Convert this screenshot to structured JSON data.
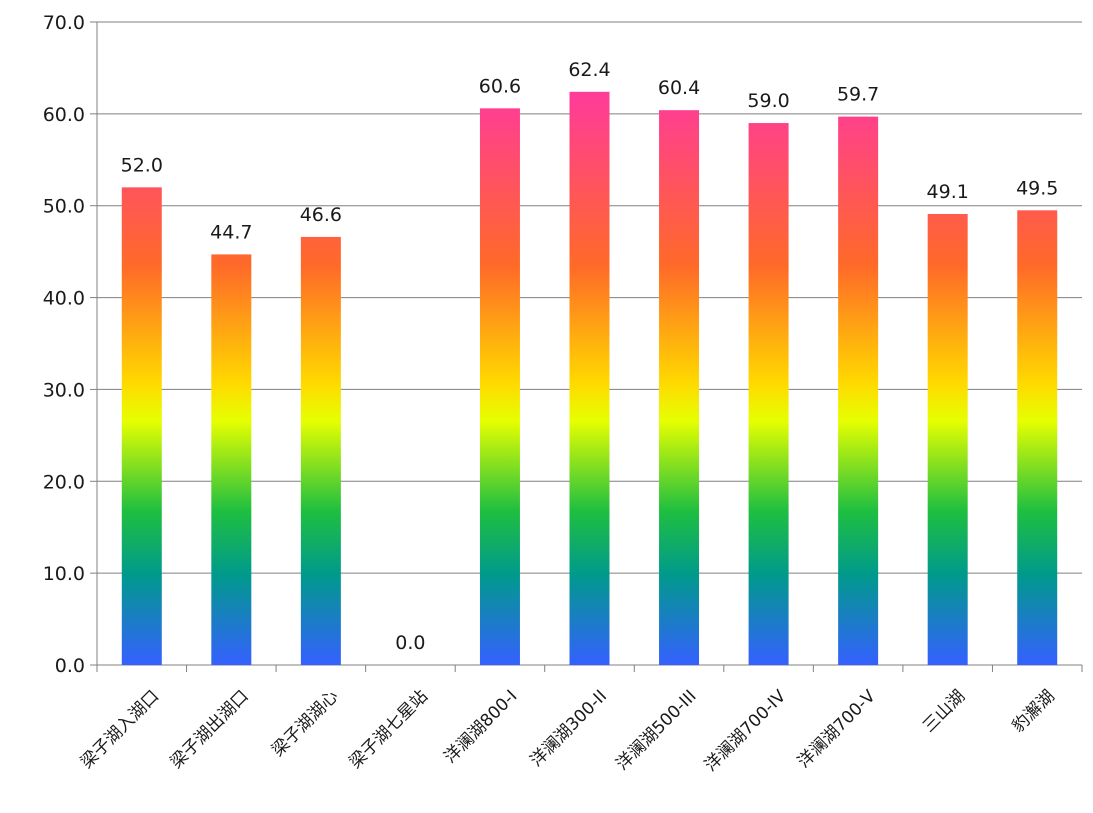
{
  "chart_data": {
    "type": "bar",
    "title": "",
    "xlabel": "",
    "ylabel": "",
    "ylim": [
      0,
      70
    ],
    "y_ticks": [
      "0.0",
      "10.0",
      "20.0",
      "30.0",
      "40.0",
      "50.0",
      "60.0",
      "70.0"
    ],
    "grid": true,
    "legend": "none",
    "categories": [
      "梁子湖入湖口",
      "梁子湖出湖口",
      "梁子湖湖心",
      "梁子湖七星站",
      "洋澜湖800-I",
      "洋澜湖300-II",
      "洋澜湖500-III",
      "洋澜湖700-IV",
      "洋澜湖700-V",
      "三山湖",
      "豹澥湖"
    ],
    "values": [
      52.0,
      44.7,
      46.6,
      0.0,
      60.6,
      62.4,
      60.4,
      59.0,
      59.7,
      49.1,
      49.5
    ],
    "data_labels": [
      "52.0",
      "44.7",
      "46.6",
      "0.0",
      "60.6",
      "62.4",
      "60.4",
      "59.0",
      "59.7",
      "49.1",
      "49.5"
    ],
    "colors": {
      "gradient": [
        "#ff3c96",
        "#ff6a28",
        "#ffd800",
        "#e6ff00",
        "#1fbf40",
        "#009a8c",
        "#3560ff"
      ],
      "gridline": "#808080",
      "axis": "#808080"
    }
  }
}
